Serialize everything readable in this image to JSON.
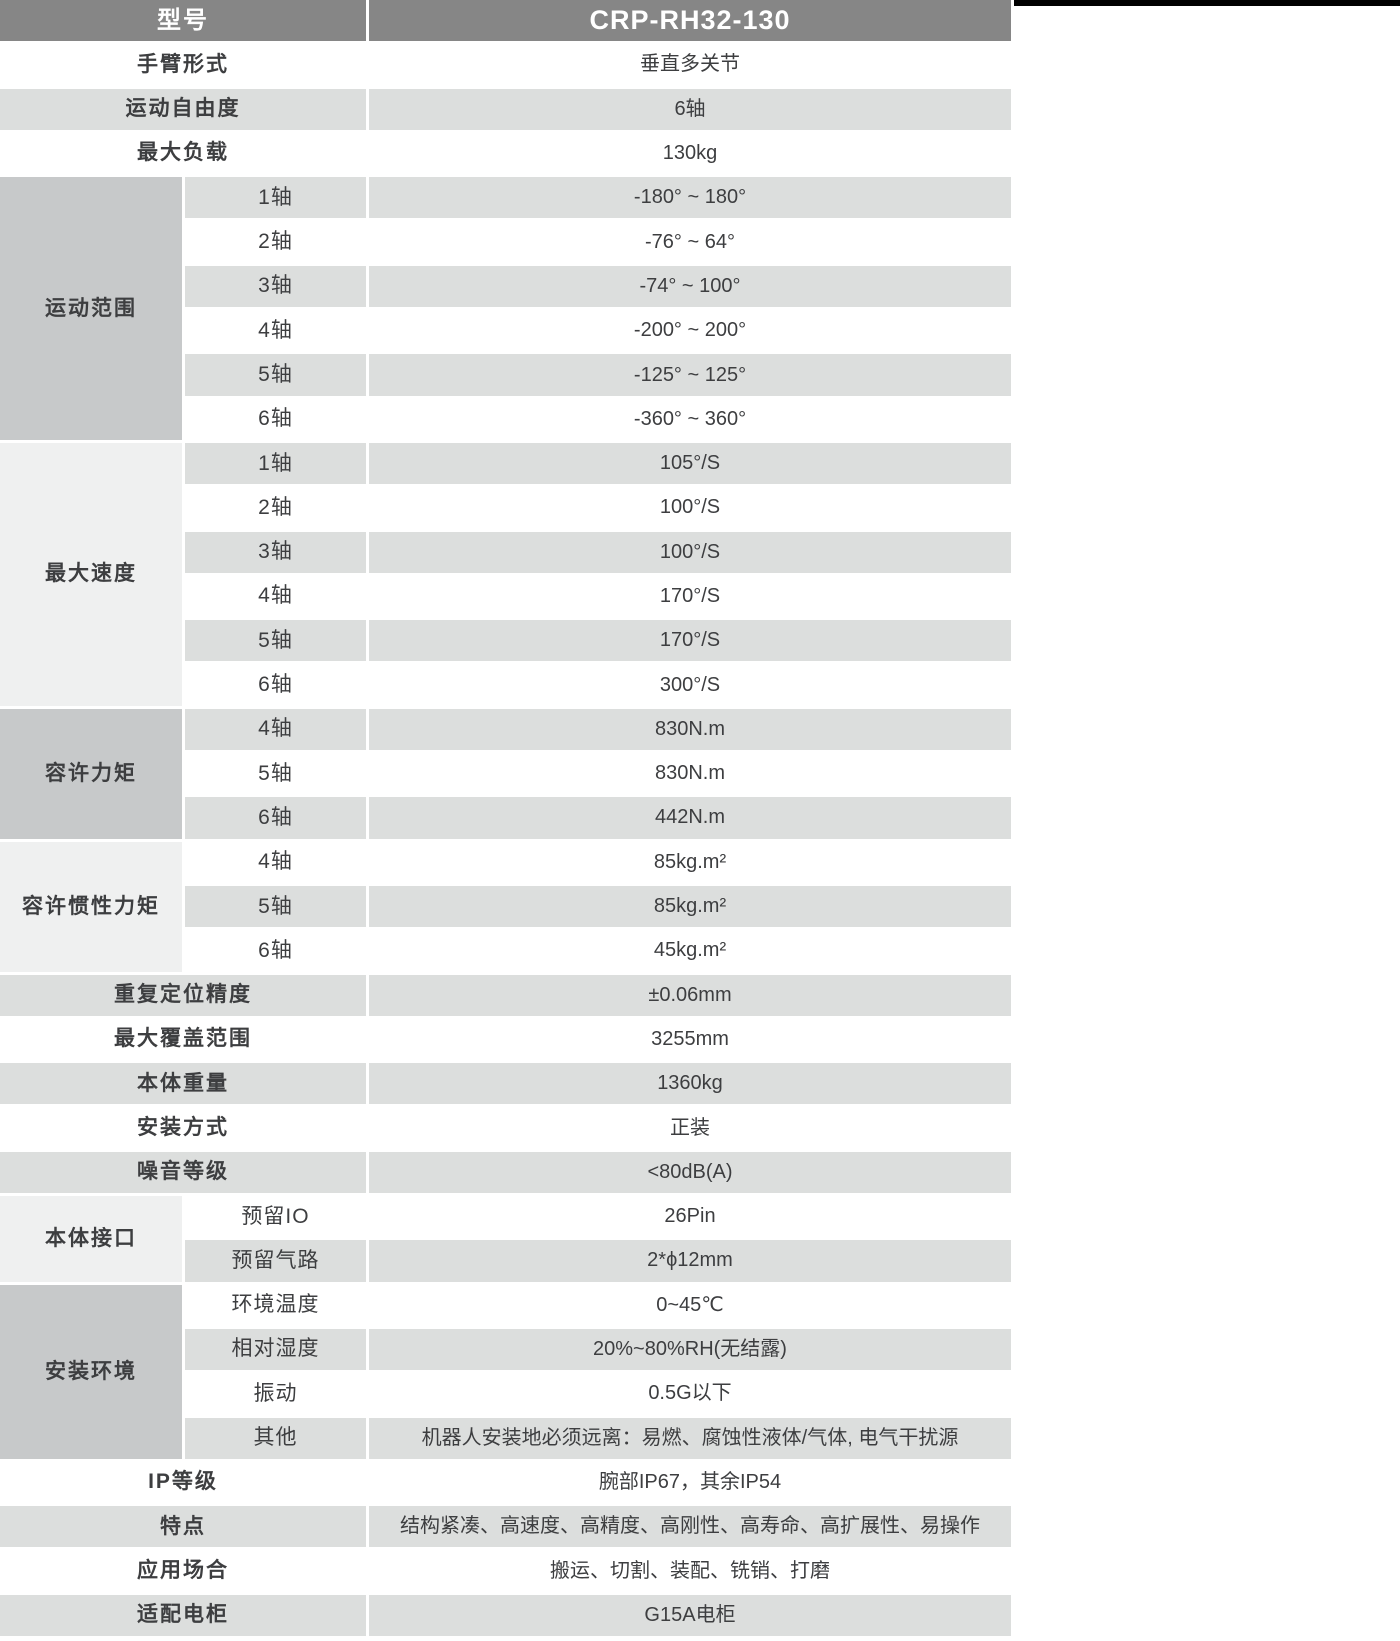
{
  "colors": {
    "header_bg": "#868686",
    "header_text": "#ffffff",
    "row_gray": "#dcdedd",
    "group_dark": "#c7c9ca",
    "group_light": "#eff0f0",
    "text": "#3d3e40",
    "top_bar": "#000000"
  },
  "table": {
    "header": {
      "label": "型号",
      "value": "CRP-RH32-130"
    },
    "rows": [
      {
        "label": "手臂形式",
        "value": "垂直多关节"
      },
      {
        "label": "运动自由度",
        "value": "6轴"
      },
      {
        "label": "最大负载",
        "value": "130kg"
      },
      {
        "group": "运动范围",
        "span": 6,
        "shade": "dark",
        "sub": "1轴",
        "value": "-180° ~ 180°"
      },
      {
        "sub": "2轴",
        "value": "-76° ~ 64°"
      },
      {
        "sub": "3轴",
        "value": "-74° ~ 100°"
      },
      {
        "sub": "4轴",
        "value": "-200° ~ 200°"
      },
      {
        "sub": "5轴",
        "value": "-125° ~ 125°"
      },
      {
        "sub": "6轴",
        "value": "-360° ~ 360°"
      },
      {
        "group": "最大速度",
        "span": 6,
        "shade": "light",
        "sub": "1轴",
        "value": "105°/S"
      },
      {
        "sub": "2轴",
        "value": "100°/S"
      },
      {
        "sub": "3轴",
        "value": "100°/S"
      },
      {
        "sub": "4轴",
        "value": "170°/S"
      },
      {
        "sub": "5轴",
        "value": "170°/S"
      },
      {
        "sub": "6轴",
        "value": "300°/S"
      },
      {
        "group": "容许力矩",
        "span": 3,
        "shade": "dark",
        "sub": "4轴",
        "value": "830N.m"
      },
      {
        "sub": "5轴",
        "value": "830N.m"
      },
      {
        "sub": "6轴",
        "value": "442N.m"
      },
      {
        "group": "容许惯性力矩",
        "span": 3,
        "shade": "light",
        "sub": "4轴",
        "value": "85kg.m²"
      },
      {
        "sub": "5轴",
        "value": "85kg.m²"
      },
      {
        "sub": "6轴",
        "value": "45kg.m²"
      },
      {
        "label": "重复定位精度",
        "value": "±0.06mm"
      },
      {
        "label": "最大覆盖范围",
        "value": "3255mm"
      },
      {
        "label": "本体重量",
        "value": "1360kg"
      },
      {
        "label": "安装方式",
        "value": "正装"
      },
      {
        "label": "噪音等级",
        "value": "<80dB(A)"
      },
      {
        "group": "本体接口",
        "span": 2,
        "shade": "light",
        "sub": "预留IO",
        "value": "26Pin"
      },
      {
        "sub": "预留气路",
        "value": "2*ϕ12mm"
      },
      {
        "group": "安装环境",
        "span": 4,
        "shade": "dark",
        "sub": "环境温度",
        "value": "0~45℃"
      },
      {
        "sub": "相对湿度",
        "value": "20%~80%RH(无结露)"
      },
      {
        "sub": "振动",
        "value": "0.5G以下"
      },
      {
        "sub": "其他",
        "value": "机器人安装地必须远离：易燃、腐蚀性液体/气体, 电气干扰源"
      },
      {
        "label": "IP等级",
        "value": "腕部IP67，其余IP54"
      },
      {
        "label": "特点",
        "value": "结构紧凑、高速度、高精度、高刚性、高寿命、高扩展性、易操作"
      },
      {
        "label": "应用场合",
        "value": "搬运、切割、装配、铣销、打磨"
      },
      {
        "label": "适配电柜",
        "value": "G15A电柜"
      }
    ]
  }
}
